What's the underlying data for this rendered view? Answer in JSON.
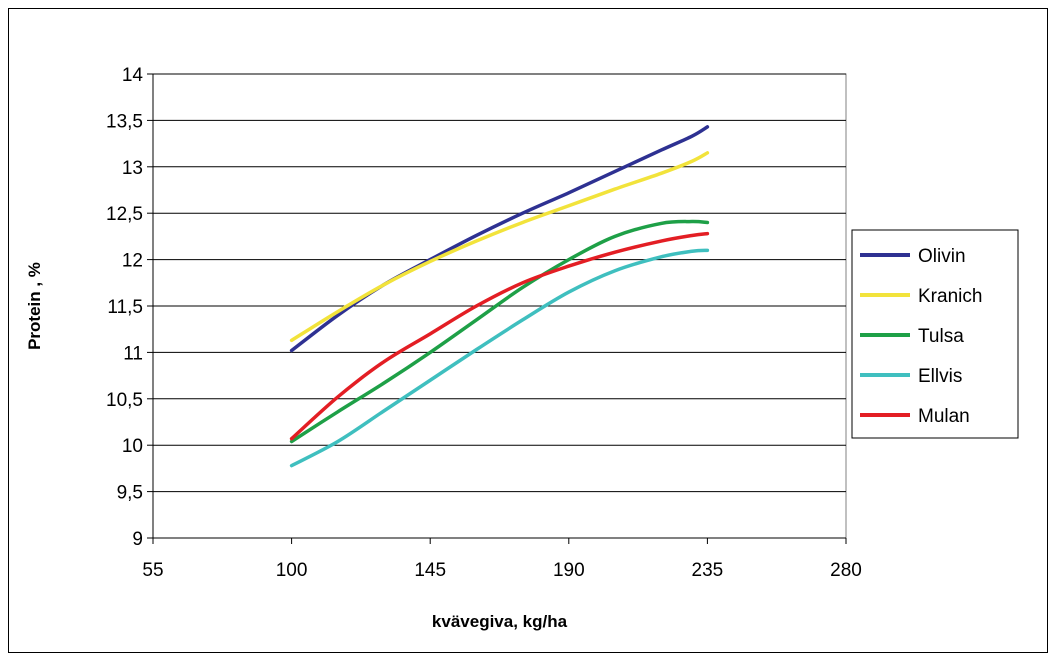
{
  "chart_data": {
    "type": "line",
    "title": "",
    "xlabel": "kvävegiva, kg/ha",
    "ylabel": "Protein , %",
    "xlim": [
      55,
      280
    ],
    "ylim": [
      9,
      14
    ],
    "x_ticks": [
      55,
      100,
      145,
      190,
      235,
      280
    ],
    "y_ticks": [
      9,
      9.5,
      10,
      10.5,
      11,
      11.5,
      12,
      12.5,
      13,
      13.5,
      14
    ],
    "x_tick_labels": [
      "55",
      "100",
      "145",
      "190",
      "235",
      "280"
    ],
    "y_tick_labels": [
      "9",
      "9,5",
      "10",
      "10,5",
      "11",
      "11,5",
      "12",
      "12,5",
      "13",
      "13,5",
      "14"
    ],
    "grid": "horizontal",
    "legend_position": "right",
    "x": [
      100,
      115,
      130,
      145,
      160,
      175,
      190,
      205,
      220,
      230,
      235
    ],
    "series": [
      {
        "name": "Olivin",
        "color": "#2e3192",
        "values": [
          11.02,
          11.4,
          11.73,
          12.0,
          12.26,
          12.5,
          12.72,
          12.95,
          13.18,
          13.33,
          13.43
        ]
      },
      {
        "name": "Kranich",
        "color": "#f2e33b",
        "values": [
          11.13,
          11.44,
          11.73,
          11.98,
          12.2,
          12.4,
          12.58,
          12.76,
          12.93,
          13.06,
          13.15
        ]
      },
      {
        "name": "Tulsa",
        "color": "#1ea047",
        "values": [
          10.04,
          10.36,
          10.67,
          11.0,
          11.35,
          11.7,
          12.0,
          12.25,
          12.39,
          12.41,
          12.4
        ]
      },
      {
        "name": "Ellvis",
        "color": "#3fbfbf",
        "values": [
          9.78,
          10.04,
          10.37,
          10.7,
          11.03,
          11.35,
          11.65,
          11.88,
          12.03,
          12.09,
          12.1
        ]
      },
      {
        "name": "Mulan",
        "color": "#e31e24",
        "values": [
          10.07,
          10.52,
          10.9,
          11.2,
          11.5,
          11.75,
          11.93,
          12.08,
          12.2,
          12.26,
          12.28
        ]
      }
    ]
  }
}
